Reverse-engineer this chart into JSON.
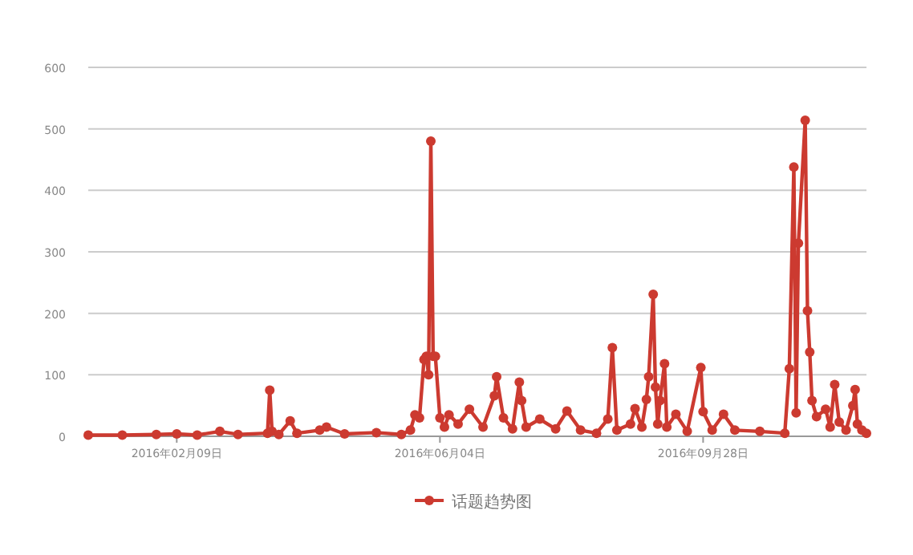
{
  "chart_data": {
    "type": "line",
    "marker": "circle",
    "grid": "y",
    "legend": "bottom",
    "xlim": [
      "2016-01-01",
      "2016-12-09"
    ],
    "ylim": [
      0,
      600
    ],
    "yticks": [
      0,
      100,
      200,
      300,
      400,
      500,
      600
    ],
    "xticks": [
      {
        "value": "2016-02-09",
        "label": "2016年02月09日"
      },
      {
        "value": "2016-06-04",
        "label": "2016年06月04日"
      },
      {
        "value": "2016-09-28",
        "label": "2016年09月28日"
      }
    ],
    "x": [
      "2016-01-01",
      "2016-01-16",
      "2016-01-31",
      "2016-02-09",
      "2016-02-18",
      "2016-02-28",
      "2016-03-07",
      "2016-03-20",
      "2016-03-21",
      "2016-03-22",
      "2016-03-25",
      "2016-03-30",
      "2016-04-02",
      "2016-04-12",
      "2016-04-15",
      "2016-04-23",
      "2016-05-07",
      "2016-05-18",
      "2016-05-22",
      "2016-05-24",
      "2016-05-26",
      "2016-05-28",
      "2016-05-29",
      "2016-05-30",
      "2016-05-31",
      "2016-06-01",
      "2016-06-02",
      "2016-06-04",
      "2016-06-06",
      "2016-06-08",
      "2016-06-12",
      "2016-06-17",
      "2016-06-23",
      "2016-06-28",
      "2016-06-29",
      "2016-07-02",
      "2016-07-06",
      "2016-07-09",
      "2016-07-10",
      "2016-07-12",
      "2016-07-18",
      "2016-07-25",
      "2016-07-30",
      "2016-08-05",
      "2016-08-12",
      "2016-08-17",
      "2016-08-19",
      "2016-08-21",
      "2016-08-27",
      "2016-08-29",
      "2016-09-01",
      "2016-09-03",
      "2016-09-04",
      "2016-09-06",
      "2016-09-07",
      "2016-09-08",
      "2016-09-09",
      "2016-09-11",
      "2016-09-12",
      "2016-09-16",
      "2016-09-21",
      "2016-09-27",
      "2016-09-28",
      "2016-10-02",
      "2016-10-07",
      "2016-10-12",
      "2016-10-23",
      "2016-11-03",
      "2016-11-05",
      "2016-11-07",
      "2016-11-08",
      "2016-11-09",
      "2016-11-12",
      "2016-11-13",
      "2016-11-14",
      "2016-11-15",
      "2016-11-17",
      "2016-11-21",
      "2016-11-23",
      "2016-11-25",
      "2016-11-27",
      "2016-11-30",
      "2016-12-03",
      "2016-12-04",
      "2016-12-05",
      "2016-12-07",
      "2016-12-09"
    ],
    "series": [
      {
        "name": "话题趋势图",
        "color": "#cc3a30",
        "values": [
          2,
          2,
          3,
          4,
          2,
          8,
          3,
          5,
          75,
          8,
          3,
          25,
          5,
          10,
          15,
          4,
          6,
          3,
          10,
          35,
          30,
          125,
          130,
          100,
          480,
          130,
          130,
          30,
          15,
          35,
          20,
          44,
          15,
          66,
          97,
          30,
          12,
          88,
          58,
          15,
          28,
          12,
          41,
          10,
          5,
          28,
          144,
          10,
          20,
          45,
          15,
          60,
          97,
          231,
          80,
          20,
          58,
          118,
          15,
          36,
          8,
          112,
          40,
          10,
          36,
          10,
          8,
          5,
          110,
          438,
          38,
          314,
          514,
          204,
          137,
          58,
          32,
          44,
          15,
          84,
          23,
          10,
          50,
          76,
          20,
          10,
          5
        ]
      }
    ]
  }
}
